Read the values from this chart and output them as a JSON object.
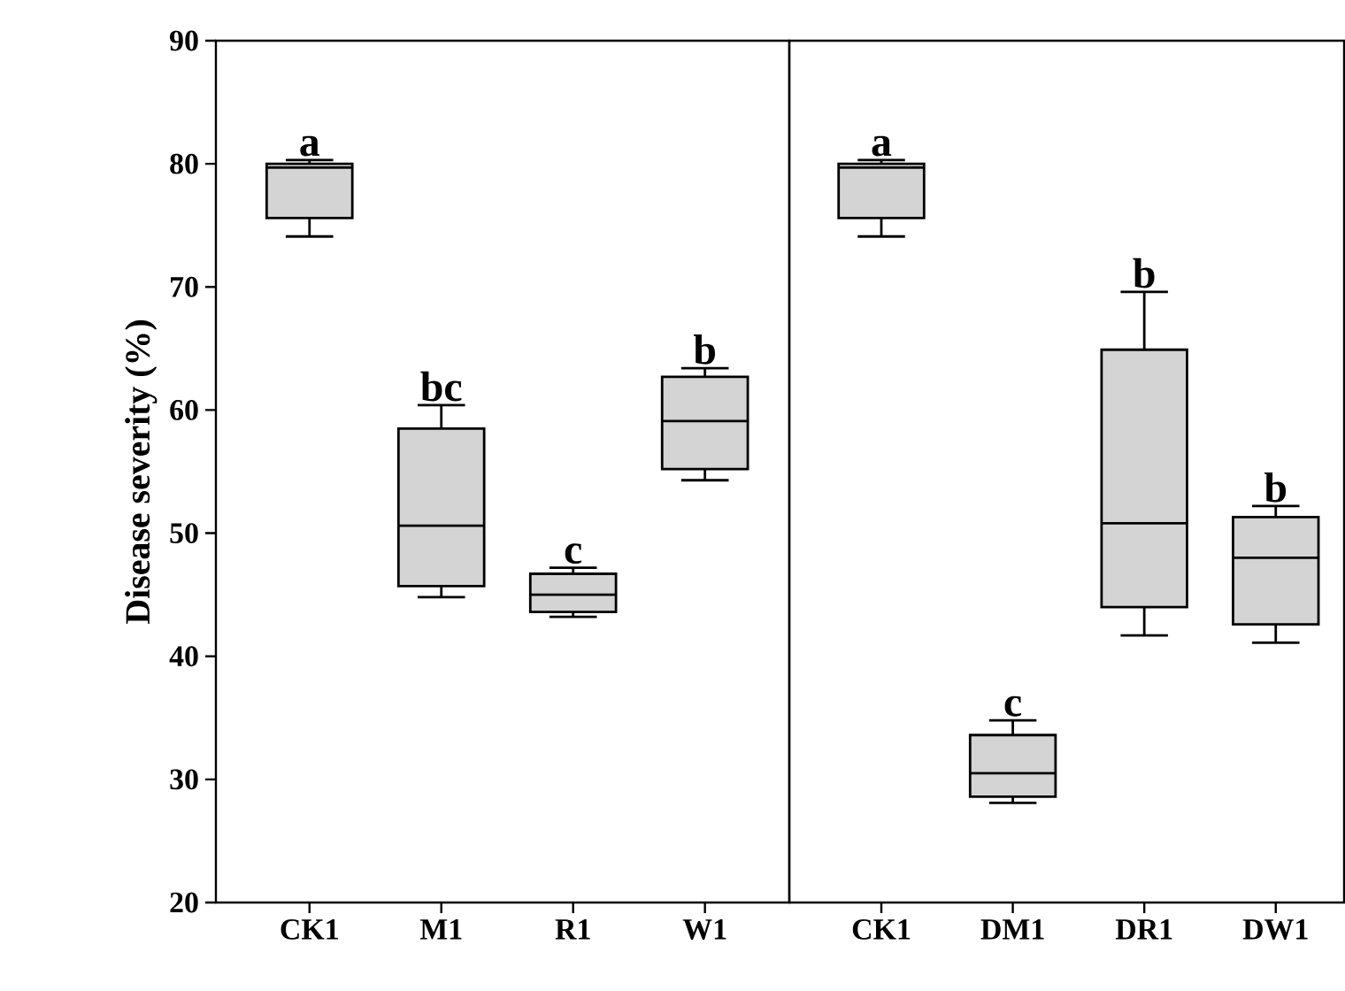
{
  "chart_data": [
    {
      "type": "box",
      "ylabel": "Disease severity (%)",
      "categories": [
        "CK1",
        "M1",
        "R1",
        "W1"
      ],
      "ylim": [
        20,
        90
      ],
      "yticks": [
        20,
        30,
        40,
        50,
        60,
        70,
        80,
        90
      ],
      "color": "#d4d4d4",
      "boxes": [
        {
          "low": 74.1,
          "q1": 75.6,
          "median": 79.7,
          "q3": 80.0,
          "high": 80.3
        },
        {
          "low": 44.8,
          "q1": 45.7,
          "median": 50.6,
          "q3": 58.5,
          "high": 60.4
        },
        {
          "low": 43.2,
          "q1": 43.6,
          "median": 45.0,
          "q3": 46.7,
          "high": 47.2
        },
        {
          "low": 54.3,
          "q1": 55.2,
          "median": 59.1,
          "q3": 62.7,
          "high": 63.4
        }
      ],
      "annotations": [
        "a",
        "bc",
        "c",
        "b"
      ]
    },
    {
      "type": "box",
      "categories": [
        "CK1",
        "DM1",
        "DR1",
        "DW1"
      ],
      "ylim": [
        20,
        90
      ],
      "tick_labels": "x",
      "color": "#d4d4d4",
      "boxes": [
        {
          "low": 74.1,
          "q1": 75.6,
          "median": 79.7,
          "q3": 80.0,
          "high": 80.3
        },
        {
          "low": 28.1,
          "q1": 28.6,
          "median": 30.5,
          "q3": 33.6,
          "high": 34.8
        },
        {
          "low": 41.7,
          "q1": 44.0,
          "median": 50.8,
          "q3": 64.9,
          "high": 69.6
        },
        {
          "low": 41.1,
          "q1": 42.6,
          "median": 48.0,
          "q3": 51.3,
          "high": 52.2
        }
      ],
      "annotations": [
        "a",
        "c",
        "b",
        "b"
      ]
    }
  ]
}
